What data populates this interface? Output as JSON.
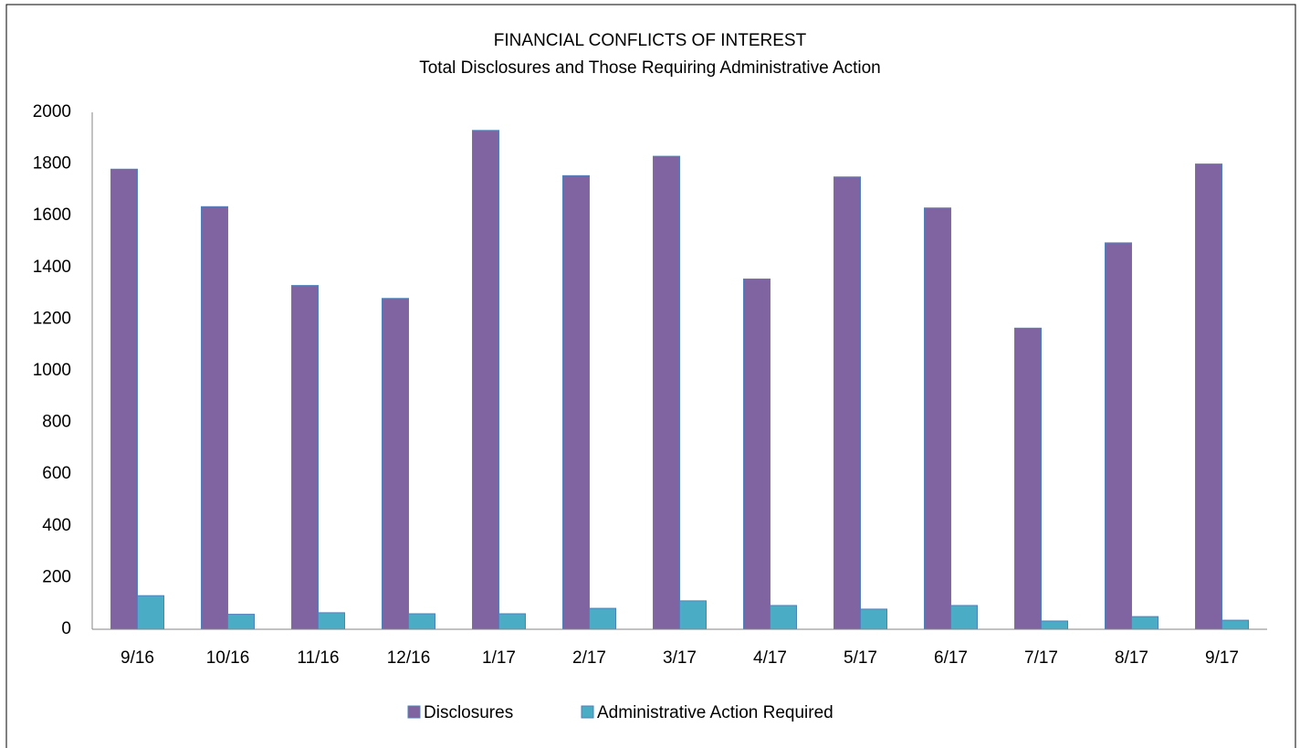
{
  "chart_data": {
    "type": "bar",
    "title": "FINANCIAL CONFLICTS OF INTEREST",
    "subtitle": "Total Disclosures and Those Requiring Administrative Action",
    "categories": [
      "9/16",
      "10/16",
      "11/16",
      "12/16",
      "1/17",
      "2/17",
      "3/17",
      "4/17",
      "5/17",
      "6/17",
      "7/17",
      "8/17",
      "9/17"
    ],
    "series": [
      {
        "name": "Disclosures",
        "color": "#8064a2",
        "values": [
          1780,
          1635,
          1330,
          1280,
          1930,
          1755,
          1830,
          1355,
          1750,
          1630,
          1165,
          1495,
          1800
        ]
      },
      {
        "name": "Administrative Action Required",
        "color": "#4bacc6",
        "values": [
          130,
          58,
          64,
          60,
          60,
          81,
          110,
          92,
          78,
          92,
          32,
          49,
          35
        ]
      }
    ],
    "ylim": [
      0,
      2000
    ],
    "yticks": [
      0,
      200,
      400,
      600,
      800,
      1000,
      1200,
      1400,
      1600,
      1800,
      2000
    ],
    "grid": false,
    "legend": "bottom"
  }
}
